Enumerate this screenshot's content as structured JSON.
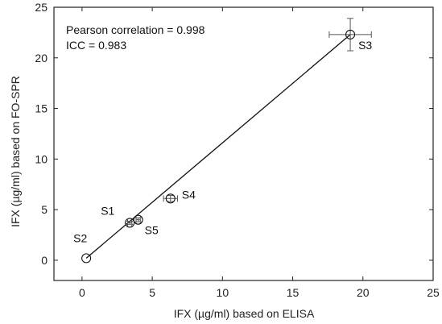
{
  "chart_data": {
    "type": "scatter",
    "xlabel": "IFX (µg/ml) based on ELISA",
    "ylabel": "IFX (µg/ml) based on FO-SPR",
    "xlim": [
      -2,
      25
    ],
    "ylim": [
      -2,
      25
    ],
    "xticks": [
      0,
      5,
      10,
      15,
      20,
      25
    ],
    "yticks": [
      0,
      5,
      10,
      15,
      20,
      25
    ],
    "grid": false,
    "annotations": [
      "Pearson correlation = 0.998",
      "ICC = 0.983"
    ],
    "points": [
      {
        "label": "S1",
        "x": 3.4,
        "y": 3.7,
        "xerr": 0.15,
        "yerr": 0.15
      },
      {
        "label": "S2",
        "x": 0.3,
        "y": 0.2,
        "xerr": 0.0,
        "yerr": 0.0
      },
      {
        "label": "S3",
        "x": 19.1,
        "y": 22.3,
        "xerr": 1.5,
        "yerr": 1.6
      },
      {
        "label": "S4",
        "x": 6.3,
        "y": 6.1,
        "xerr": 0.5,
        "yerr": 0.3
      },
      {
        "label": "S5",
        "x": 4.0,
        "y": 4.0,
        "xerr": 0.15,
        "yerr": 0.2
      }
    ],
    "fit_line": {
      "x": [
        0.3,
        19.1
      ],
      "y": [
        0.2,
        22.3
      ]
    }
  }
}
